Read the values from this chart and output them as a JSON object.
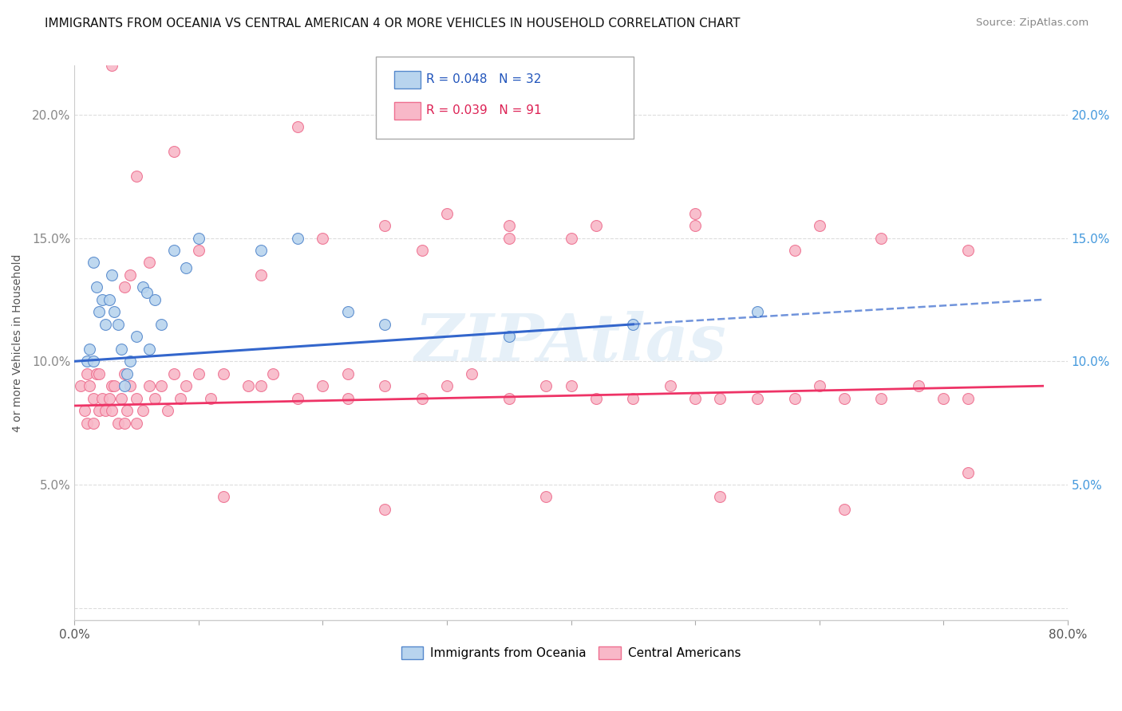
{
  "title": "IMMIGRANTS FROM OCEANIA VS CENTRAL AMERICAN 4 OR MORE VEHICLES IN HOUSEHOLD CORRELATION CHART",
  "source": "Source: ZipAtlas.com",
  "ylabel": "4 or more Vehicles in Household",
  "xlim": [
    0.0,
    80.0
  ],
  "ylim": [
    -0.5,
    22.0
  ],
  "yticks": [
    0.0,
    5.0,
    10.0,
    15.0,
    20.0
  ],
  "ytick_labels_left": [
    "",
    "5.0%",
    "10.0%",
    "15.0%",
    "20.0%"
  ],
  "ytick_labels_right": [
    "",
    "5.0%",
    "10.0%",
    "15.0%",
    "20.0%"
  ],
  "legend_r1": "R = 0.048",
  "legend_n1": "N = 32",
  "legend_r2": "R = 0.039",
  "legend_n2": "N = 91",
  "series1_name": "Immigrants from Oceania",
  "series2_name": "Central Americans",
  "series1_color": "#b8d4ee",
  "series2_color": "#f8b8c8",
  "series1_edge": "#5588cc",
  "series2_edge": "#ee7090",
  "trendline1_color": "#3366cc",
  "trendline2_color": "#ee3366",
  "watermark": "ZIPAtlas",
  "background_color": "#ffffff",
  "grid_color": "#dddddd",
  "title_color": "#111111",
  "series1_x": [
    1.0,
    1.2,
    1.5,
    1.5,
    1.8,
    2.0,
    2.2,
    2.5,
    2.8,
    3.0,
    3.2,
    3.5,
    3.8,
    4.0,
    4.2,
    4.5,
    5.0,
    5.5,
    5.8,
    6.0,
    6.5,
    7.0,
    8.0,
    9.0,
    10.0,
    15.0,
    18.0,
    22.0,
    25.0,
    35.0,
    45.0,
    55.0
  ],
  "series1_y": [
    10.0,
    10.5,
    14.0,
    10.0,
    13.0,
    12.0,
    12.5,
    11.5,
    12.5,
    13.5,
    12.0,
    11.5,
    10.5,
    9.0,
    9.5,
    10.0,
    11.0,
    13.0,
    12.8,
    10.5,
    12.5,
    11.5,
    14.5,
    13.8,
    15.0,
    14.5,
    15.0,
    12.0,
    11.5,
    11.0,
    11.5,
    12.0
  ],
  "series2_x": [
    0.5,
    0.8,
    1.0,
    1.0,
    1.2,
    1.5,
    1.5,
    1.8,
    2.0,
    2.0,
    2.2,
    2.5,
    2.8,
    3.0,
    3.0,
    3.2,
    3.5,
    3.8,
    4.0,
    4.0,
    4.2,
    4.5,
    5.0,
    5.0,
    5.5,
    6.0,
    6.5,
    7.0,
    7.5,
    8.0,
    8.5,
    9.0,
    10.0,
    11.0,
    12.0,
    14.0,
    15.0,
    16.0,
    18.0,
    20.0,
    22.0,
    22.0,
    25.0,
    28.0,
    30.0,
    32.0,
    35.0,
    38.0,
    40.0,
    42.0,
    45.0,
    48.0,
    50.0,
    52.0,
    55.0,
    58.0,
    60.0,
    62.0,
    65.0,
    68.0,
    70.0,
    72.0,
    18.0,
    8.0,
    5.0,
    3.0,
    25.0,
    30.0,
    35.0,
    40.0,
    50.0,
    60.0,
    4.0,
    4.5,
    6.0,
    10.0,
    15.0,
    20.0,
    28.0,
    35.0,
    42.0,
    50.0,
    58.0,
    65.0,
    72.0,
    12.0,
    25.0,
    38.0,
    52.0,
    62.0,
    72.0
  ],
  "series2_y": [
    9.0,
    8.0,
    9.5,
    7.5,
    9.0,
    8.5,
    7.5,
    9.5,
    8.0,
    9.5,
    8.5,
    8.0,
    8.5,
    9.0,
    8.0,
    9.0,
    7.5,
    8.5,
    9.5,
    7.5,
    8.0,
    9.0,
    8.5,
    7.5,
    8.0,
    9.0,
    8.5,
    9.0,
    8.0,
    9.5,
    8.5,
    9.0,
    9.5,
    8.5,
    9.5,
    9.0,
    9.0,
    9.5,
    8.5,
    9.0,
    8.5,
    9.5,
    9.0,
    8.5,
    9.0,
    9.5,
    8.5,
    9.0,
    9.0,
    8.5,
    8.5,
    9.0,
    8.5,
    8.5,
    8.5,
    8.5,
    9.0,
    8.5,
    8.5,
    9.0,
    8.5,
    8.5,
    19.5,
    18.5,
    17.5,
    22.0,
    15.5,
    16.0,
    15.5,
    15.0,
    16.0,
    15.5,
    13.0,
    13.5,
    14.0,
    14.5,
    13.5,
    15.0,
    14.5,
    15.0,
    15.5,
    15.5,
    14.5,
    15.0,
    14.5,
    4.5,
    4.0,
    4.5,
    4.5,
    4.0,
    5.5
  ],
  "trendline1_x_start": 0.0,
  "trendline1_x_solid_end": 45.0,
  "trendline1_x_dashed_end": 78.0,
  "trendline1_y_start": 10.0,
  "trendline1_y_solid_end": 11.5,
  "trendline1_y_dashed_end": 12.5,
  "trendline2_x_start": 0.0,
  "trendline2_x_end": 78.0,
  "trendline2_y_start": 8.2,
  "trendline2_y_end": 9.0
}
